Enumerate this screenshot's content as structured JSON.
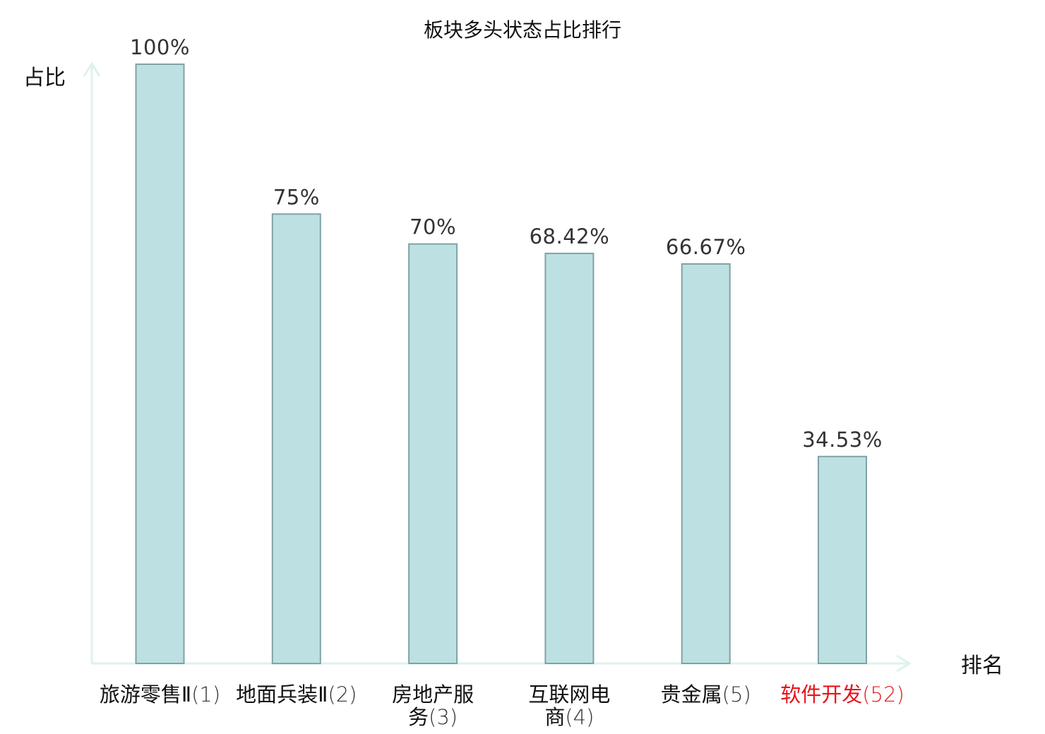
{
  "chart_data": {
    "type": "bar",
    "title": "板块多头状态占比排行",
    "xlabel": "排名",
    "ylabel": "占比",
    "categories": [
      {
        "name": "旅游零售Ⅱ",
        "rank": "(1)",
        "highlight": false
      },
      {
        "name": "地面兵装Ⅱ",
        "rank": "(2)",
        "highlight": false
      },
      {
        "name": "房地产服务",
        "rank": "(3)",
        "highlight": false
      },
      {
        "name": "互联网电商",
        "rank": "(4)",
        "highlight": false
      },
      {
        "name": "贵金属",
        "rank": "(5)",
        "highlight": false
      },
      {
        "name": "软件开发",
        "rank": "(52)",
        "highlight": true
      }
    ],
    "values": [
      100,
      75,
      70,
      68.42,
      66.67,
      34.53
    ],
    "value_labels": [
      "100%",
      "75%",
      "70%",
      "68.42%",
      "66.67%",
      "34.53%"
    ],
    "ylim": [
      0,
      100
    ],
    "unit": "%",
    "grid": false,
    "legend": "none"
  },
  "colors": {
    "bar_fill": "#bde0e3",
    "bar_stroke": "#7fa3a6",
    "axis": "#dff1ee",
    "text": "#111111",
    "value_text": "#333333",
    "highlight": "#e8141b",
    "category_rank": "#333333"
  }
}
